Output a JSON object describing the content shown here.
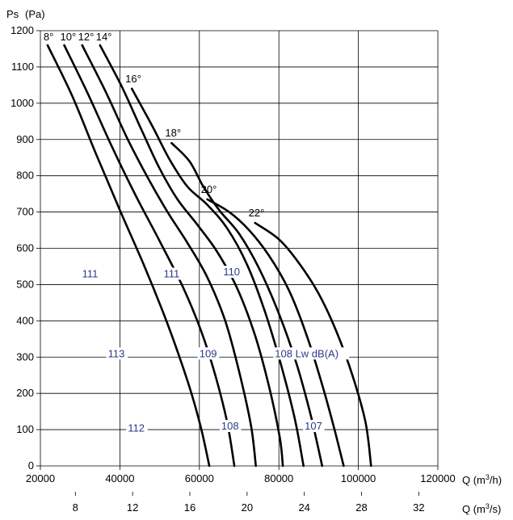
{
  "chart_data": {
    "type": "line",
    "title": "",
    "ylabel": "Ps",
    "ylabel_unit": "(Pa)",
    "xlabel": "Q (m³/h)",
    "xlabel_parts": [
      "Q (m",
      "3",
      "/h)"
    ],
    "x2label": "Q (m³/s)",
    "x2label_parts": [
      "Q (m",
      "3",
      "/s)"
    ],
    "xlim": [
      20000,
      120000
    ],
    "ylim": [
      0,
      1200
    ],
    "grid": true,
    "x_ticks": [
      "20000",
      "40000",
      "60000",
      "80000",
      "100000",
      "120000"
    ],
    "x_ticks_values": [
      20000,
      40000,
      60000,
      80000,
      100000,
      120000
    ],
    "y_ticks": [
      "0",
      "100",
      "200",
      "300",
      "400",
      "500",
      "600",
      "700",
      "800",
      "900",
      "1000",
      "1100",
      "1200"
    ],
    "y_ticks_values": [
      0,
      100,
      200,
      300,
      400,
      500,
      600,
      700,
      800,
      900,
      1000,
      1100,
      1200
    ],
    "x2_ticks": [
      "8",
      "12",
      "16",
      "20",
      "24",
      "28",
      "32"
    ],
    "x2_ticks_values": [
      8,
      12,
      16,
      20,
      24,
      28,
      32
    ],
    "series": [
      {
        "name": "8°",
        "label": "8°",
        "points": [
          [
            21800,
            1160
          ],
          [
            28000,
            1020
          ],
          [
            34000,
            860
          ],
          [
            40000,
            705
          ],
          [
            46000,
            555
          ],
          [
            51000,
            420
          ],
          [
            55000,
            300
          ],
          [
            58000,
            200
          ],
          [
            60500,
            100
          ],
          [
            62500,
            0
          ]
        ]
      },
      {
        "name": "10°",
        "label": "10°",
        "points": [
          [
            26000,
            1160
          ],
          [
            32000,
            1025
          ],
          [
            38000,
            880
          ],
          [
            44000,
            745
          ],
          [
            50000,
            620
          ],
          [
            56000,
            490
          ],
          [
            60500,
            370
          ],
          [
            64000,
            250
          ],
          [
            67000,
            120
          ],
          [
            68800,
            0
          ]
        ]
      },
      {
        "name": "12°",
        "label": "12°",
        "points": [
          [
            30500,
            1160
          ],
          [
            36500,
            1030
          ],
          [
            42000,
            900
          ],
          [
            47000,
            795
          ],
          [
            52000,
            700
          ],
          [
            57000,
            615
          ],
          [
            62000,
            520
          ],
          [
            66500,
            400
          ],
          [
            70000,
            260
          ],
          [
            73000,
            110
          ],
          [
            74200,
            0
          ]
        ]
      },
      {
        "name": "14°",
        "label": "14°",
        "points": [
          [
            35000,
            1160
          ],
          [
            40500,
            1045
          ],
          [
            45500,
            925
          ],
          [
            50000,
            820
          ],
          [
            54500,
            735
          ],
          [
            59500,
            665
          ],
          [
            64500,
            590
          ],
          [
            69500,
            490
          ],
          [
            74000,
            360
          ],
          [
            77500,
            220
          ],
          [
            80200,
            80
          ],
          [
            81000,
            0
          ]
        ]
      },
      {
        "name": "16°",
        "label": "16°",
        "points": [
          [
            43000,
            1040
          ],
          [
            48000,
            940
          ],
          [
            52500,
            845
          ],
          [
            57000,
            770
          ],
          [
            62000,
            720
          ],
          [
            67000,
            655
          ],
          [
            72000,
            555
          ],
          [
            76500,
            425
          ],
          [
            80500,
            280
          ],
          [
            84000,
            130
          ],
          [
            86200,
            0
          ]
        ]
      },
      {
        "name": "18°",
        "label": "18°",
        "points": [
          [
            53000,
            890
          ],
          [
            57500,
            840
          ],
          [
            61000,
            770
          ],
          [
            65000,
            705
          ],
          [
            70000,
            640
          ],
          [
            75000,
            545
          ],
          [
            80000,
            420
          ],
          [
            84500,
            280
          ],
          [
            88000,
            140
          ],
          [
            90900,
            0
          ]
        ]
      },
      {
        "name": "20°",
        "label": "20°",
        "points": [
          [
            62000,
            735
          ],
          [
            67500,
            700
          ],
          [
            72500,
            650
          ],
          [
            77500,
            580
          ],
          [
            82500,
            485
          ],
          [
            87000,
            360
          ],
          [
            91000,
            220
          ],
          [
            94000,
            100
          ],
          [
            96300,
            0
          ]
        ]
      },
      {
        "name": "22°",
        "label": "22°",
        "points": [
          [
            74000,
            670
          ],
          [
            80000,
            625
          ],
          [
            85000,
            560
          ],
          [
            90000,
            475
          ],
          [
            94500,
            370
          ],
          [
            98500,
            250
          ],
          [
            101800,
            120
          ],
          [
            103200,
            0
          ]
        ]
      }
    ],
    "iso_labels": [
      {
        "text": "111",
        "x": 30500,
        "y": 520
      },
      {
        "text": "111",
        "x": 51000,
        "y": 520
      },
      {
        "text": "110",
        "x": 66000,
        "y": 525
      },
      {
        "text": "113",
        "x": 37000,
        "y": 300
      },
      {
        "text": "109",
        "x": 60000,
        "y": 300
      },
      {
        "text": "108 Lw dB(A)",
        "x": 79000,
        "y": 300
      },
      {
        "text": "112",
        "x": 42000,
        "y": 95
      },
      {
        "text": "108",
        "x": 65500,
        "y": 100
      },
      {
        "text": "107",
        "x": 86500,
        "y": 100
      }
    ],
    "colors": {
      "curve": "#000000",
      "iso_label": "#2a3a8c",
      "grid": "#000000"
    }
  }
}
